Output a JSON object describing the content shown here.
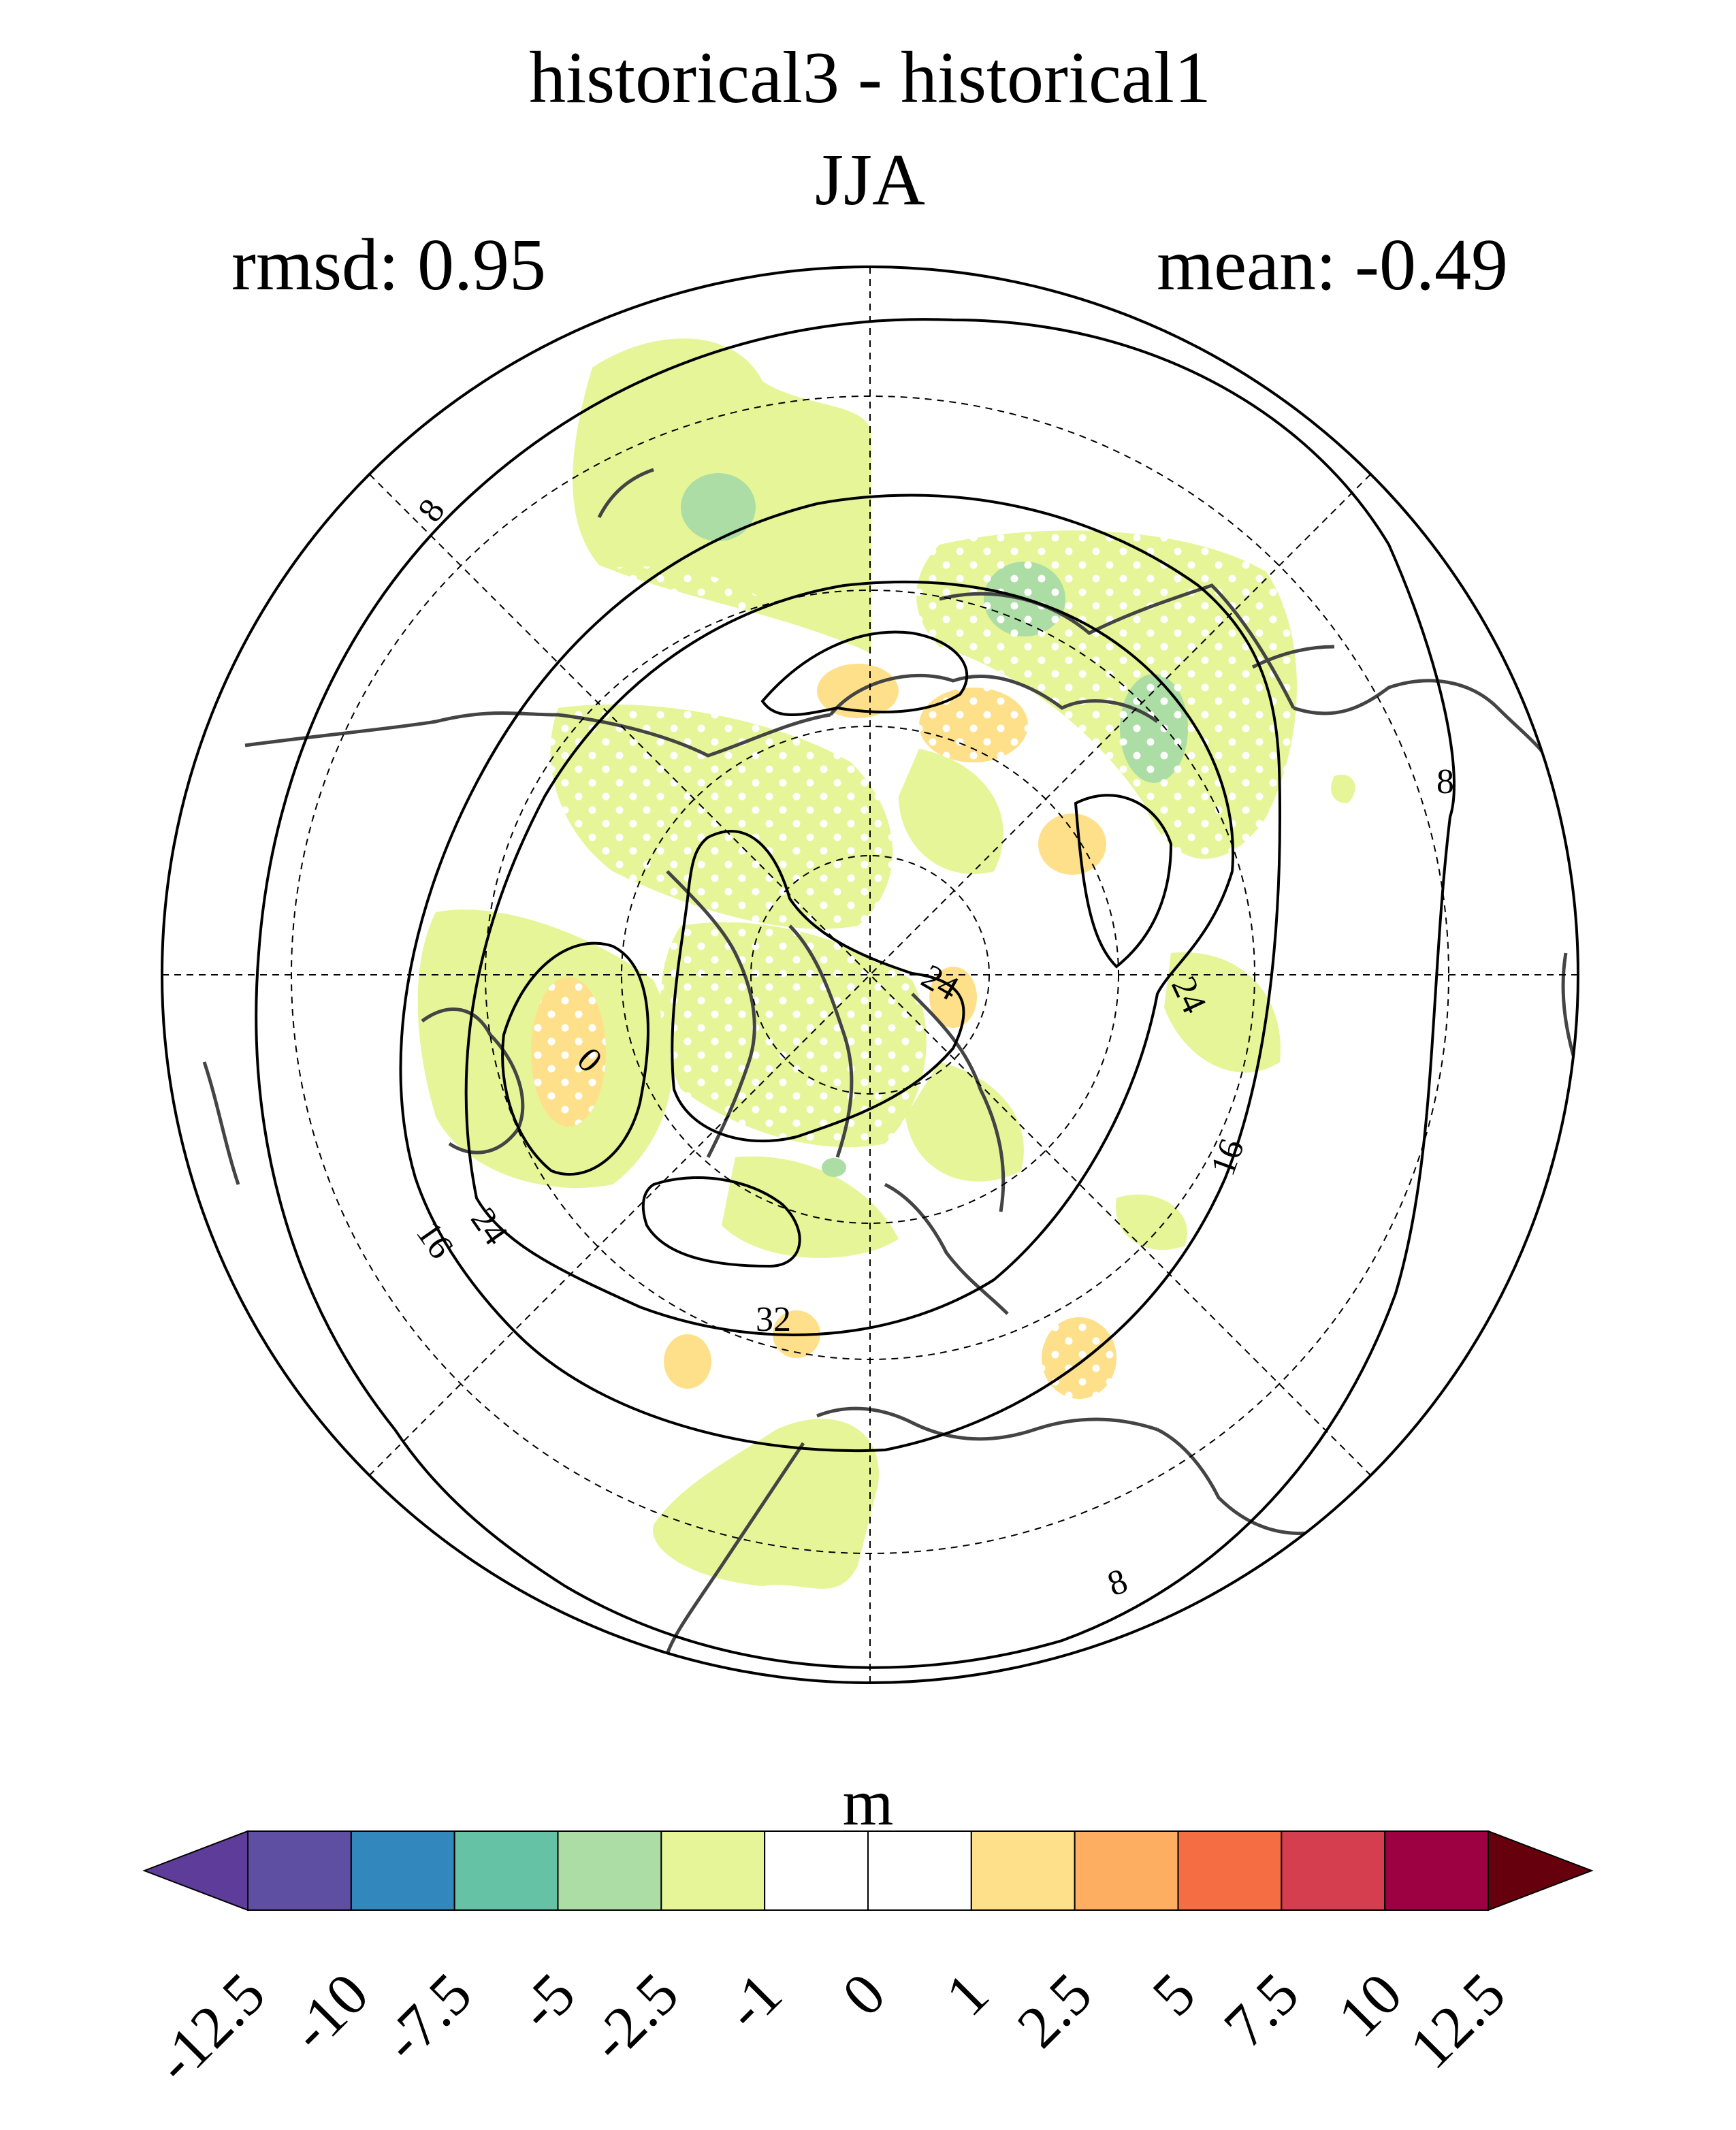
{
  "title": {
    "line1": "historical3 - historical1",
    "line2": "JJA",
    "rmsd": "rmsd: 0.95",
    "mean": "mean: -0.49"
  },
  "map": {
    "projection": "north-polar-stereographic",
    "contour_labels": [
      "8",
      "8",
      "8",
      "16",
      "16",
      "24",
      "24",
      "24",
      "32",
      "0"
    ]
  },
  "colorbar": {
    "unit": "m",
    "ticks": [
      "-12.5",
      "-10",
      "-7.5",
      "-5",
      "-2.5",
      "-1",
      "0",
      "1",
      "2.5",
      "5",
      "7.5",
      "10",
      "12.5"
    ],
    "colors": [
      "#5e3c99",
      "#5e4fa2",
      "#3288bd",
      "#66c2a5",
      "#abdda4",
      "#e6f598",
      "#ffffff",
      "#ffffff",
      "#fee08b",
      "#fdae61",
      "#f46d43",
      "#d53e4f",
      "#9e0142",
      "#67000d"
    ]
  }
}
